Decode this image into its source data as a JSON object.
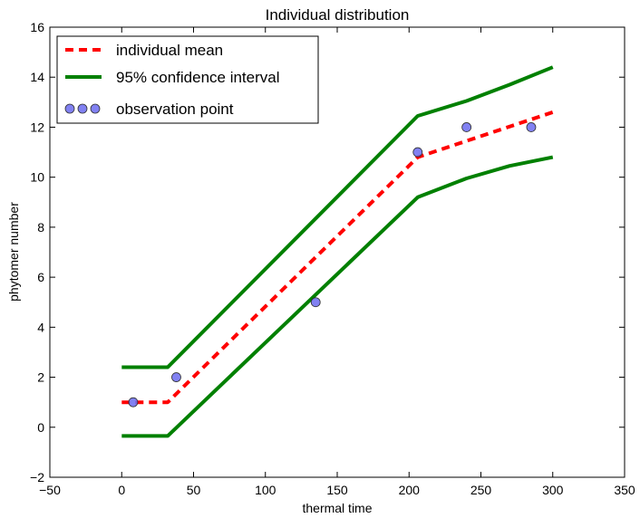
{
  "chart_data": {
    "type": "line",
    "title": "Individual distribution",
    "xlabel": "thermal time",
    "ylabel": "phytomer number",
    "xlim": [
      -50,
      350
    ],
    "ylim": [
      -2,
      16
    ],
    "xticks": [
      -50,
      0,
      50,
      100,
      150,
      200,
      250,
      300,
      350
    ],
    "yticks": [
      -2,
      0,
      2,
      4,
      6,
      8,
      10,
      12,
      14,
      16
    ],
    "grid": false,
    "legend_position": "top-left",
    "series": [
      {
        "name": "individual mean",
        "style": "dashed",
        "color": "#ff0000",
        "x": [
          0,
          32,
          206,
          300
        ],
        "y": [
          1.0,
          1.0,
          10.8,
          12.6
        ]
      },
      {
        "name": "95% confidence interval",
        "style": "solid",
        "color": "#008000",
        "x": [
          0,
          32,
          206,
          240,
          270,
          300
        ],
        "y": [
          2.4,
          2.4,
          12.45,
          13.05,
          13.7,
          14.4
        ]
      },
      {
        "name": "",
        "style": "solid",
        "color": "#008000",
        "x": [
          0,
          32,
          206,
          240,
          270,
          300
        ],
        "y": [
          -0.35,
          -0.35,
          9.2,
          9.95,
          10.45,
          10.8
        ]
      },
      {
        "name": "observation point",
        "style": "markers",
        "color": "#6b6bf0",
        "x": [
          8,
          38,
          135,
          206,
          240,
          285
        ],
        "y": [
          1,
          2,
          5,
          11,
          12,
          12
        ]
      }
    ]
  }
}
